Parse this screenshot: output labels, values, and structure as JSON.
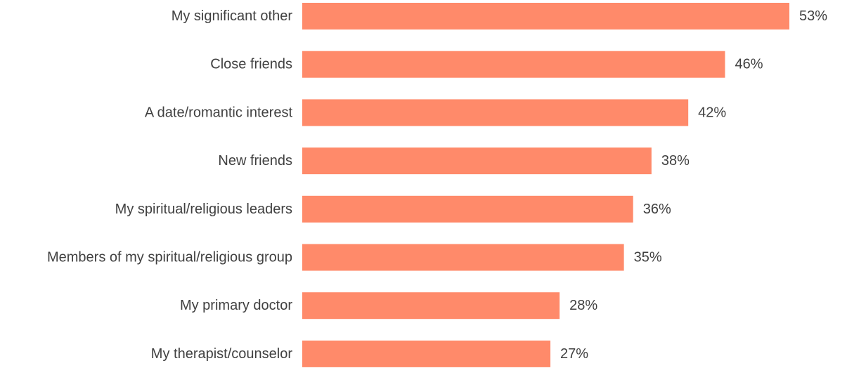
{
  "chart_data": {
    "type": "bar",
    "orientation": "horizontal",
    "categories": [
      "My significant other",
      "Close friends",
      "A date/romantic interest",
      "New friends",
      "My spiritual/religious leaders",
      "Members of my spiritual/religious group",
      "My primary doctor",
      "My therapist/counselor"
    ],
    "values": [
      53,
      46,
      42,
      38,
      36,
      35,
      28,
      27
    ],
    "value_labels": [
      "53%",
      "46%",
      "42%",
      "38%",
      "36%",
      "35%",
      "28%",
      "27%"
    ],
    "value_unit": "%",
    "title": "",
    "xlabel": "",
    "ylabel": "",
    "xlim": [
      0,
      53
    ],
    "grid": false,
    "legend": "none",
    "bar_color": "#FF8A6A",
    "label_color": "#404040"
  }
}
